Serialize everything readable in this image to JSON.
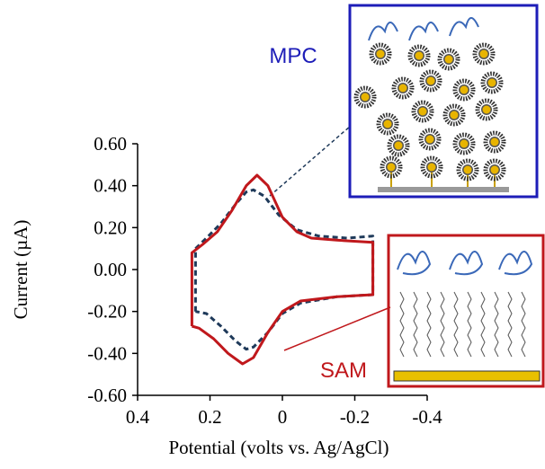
{
  "chart_data": {
    "type": "line",
    "xlabel": "Potential (volts vs. Ag/AgCl)",
    "ylabel": "Current (µA)",
    "xlim": [
      0.4,
      -0.4
    ],
    "xticks": [
      0.4,
      0.2,
      0,
      -0.2,
      -0.4
    ],
    "ylim": [
      -0.6,
      0.6
    ],
    "yticks": [
      {
        "value": 0.6,
        "label": "0.60"
      },
      {
        "value": 0.4,
        "label": "0.40"
      },
      {
        "value": 0.2,
        "label": "0.20"
      },
      {
        "value": 0,
        "label": "0.00"
      },
      {
        "value": -0.2,
        "label": "-0.20"
      },
      {
        "value": -0.4,
        "label": "-0.40"
      },
      {
        "value": -0.6,
        "label": "-0.60"
      }
    ],
    "series": [
      {
        "name": "MPC",
        "color": "#1f3a5a",
        "dashed": true,
        "x": [
          0.24,
          0.24,
          0.21,
          0.17,
          0.13,
          0.1,
          0.08,
          0.05,
          0.01,
          -0.04,
          -0.1,
          -0.18,
          -0.25,
          -0.25,
          -0.15,
          -0.05,
          0.0,
          0.04,
          0.08,
          0.1,
          0.13,
          0.17,
          0.21,
          0.24
        ],
        "values": [
          -0.2,
          0.1,
          0.15,
          0.22,
          0.31,
          0.37,
          0.38,
          0.35,
          0.26,
          0.19,
          0.16,
          0.15,
          0.16,
          -0.12,
          -0.13,
          -0.16,
          -0.21,
          -0.3,
          -0.37,
          -0.38,
          -0.34,
          -0.27,
          -0.21,
          -0.2
        ]
      },
      {
        "name": "SAM",
        "color": "#c0181c",
        "dashed": false,
        "x": [
          0.25,
          0.25,
          0.22,
          0.18,
          0.14,
          0.1,
          0.07,
          0.04,
          0.0,
          -0.04,
          -0.08,
          -0.15,
          -0.25,
          -0.25,
          -0.25,
          -0.15,
          -0.05,
          0.0,
          0.04,
          0.08,
          0.11,
          0.15,
          0.19,
          0.23,
          0.25
        ],
        "values": [
          -0.27,
          0.08,
          0.12,
          0.18,
          0.28,
          0.4,
          0.45,
          0.4,
          0.25,
          0.18,
          0.15,
          0.14,
          0.13,
          -0.05,
          -0.12,
          -0.13,
          -0.15,
          -0.2,
          -0.3,
          -0.42,
          -0.45,
          -0.4,
          -0.33,
          -0.28,
          -0.27
        ]
      }
    ]
  }
}
